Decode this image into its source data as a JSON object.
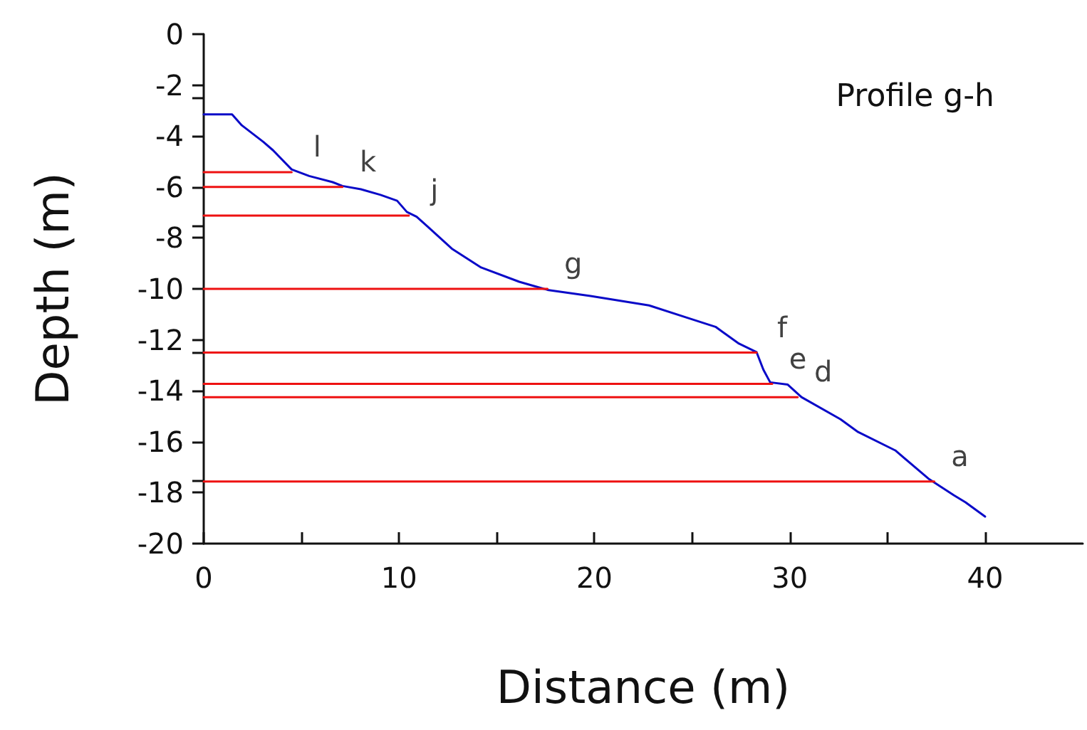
{
  "chart_data": {
    "type": "line",
    "title": "Profile g-h",
    "xlabel": "Distance (m)",
    "ylabel": "Depth (m)",
    "xlim": [
      0,
      45
    ],
    "xticks": [
      0,
      10,
      20,
      30,
      40
    ],
    "ylim": [
      -20,
      0
    ],
    "yticks": [
      -20,
      -18,
      -16,
      -14,
      -12,
      -10,
      -8,
      -6,
      -4,
      -2,
      0
    ],
    "grid": false,
    "marker": "none",
    "line_style": "solid",
    "series": [
      {
        "color": "#0a0ac8",
        "x": [
          0,
          1.45,
          1.95,
          3.05,
          3.55,
          4.5,
          5.4,
          6.6,
          7.1,
          8.05,
          9.05,
          9.9,
          10.4,
          10.9,
          11.5,
          12.7,
          14.2,
          16.15,
          17.6,
          19.8,
          22.8,
          24.7,
          26.2,
          27.4,
          28.3,
          28.65,
          29.0,
          29.9,
          30.6,
          32.6,
          33.5,
          35.4,
          37.1,
          38.4,
          39.0,
          40.0
        ],
        "values": [
          -3.15,
          -3.15,
          -3.58,
          -4.23,
          -4.56,
          -5.31,
          -5.57,
          -5.81,
          -5.96,
          -6.09,
          -6.31,
          -6.54,
          -6.98,
          -7.17,
          -7.58,
          -8.42,
          -9.16,
          -9.72,
          -10.04,
          -10.28,
          -10.65,
          -11.12,
          -11.49,
          -12.15,
          -12.48,
          -13.17,
          -13.67,
          -13.76,
          -14.25,
          -15.12,
          -15.62,
          -16.34,
          -17.45,
          -18.1,
          -18.38,
          -18.94
        ]
      },
      {
        "color": "#ee1111",
        "x": [
          0,
          4.5
        ],
        "values": [
          -5.42,
          -5.42
        ]
      },
      {
        "color": "#ee1111",
        "x": [
          0,
          7.1
        ],
        "values": [
          -6.0,
          -6.0
        ]
      },
      {
        "color": "#ee1111",
        "x": [
          0,
          10.5
        ],
        "values": [
          -7.12,
          -7.12
        ]
      },
      {
        "color": "#ee1111",
        "x": [
          0,
          17.6
        ],
        "values": [
          -10.0,
          -10.0
        ]
      },
      {
        "color": "#ee1111",
        "x": [
          0,
          28.3
        ],
        "values": [
          -12.5,
          -12.5
        ]
      },
      {
        "color": "#ee1111",
        "x": [
          0,
          29.1
        ],
        "values": [
          -13.73,
          -13.73
        ]
      },
      {
        "color": "#ee1111",
        "x": [
          0,
          30.4
        ],
        "values": [
          -14.25,
          -14.25
        ]
      },
      {
        "color": "#ee1111",
        "x": [
          0,
          37.4
        ],
        "values": [
          -17.56,
          -17.56
        ]
      }
    ],
    "annotations": [
      {
        "text": "l",
        "x": 4.5,
        "y": -5.42
      },
      {
        "text": "k",
        "x": 7.1,
        "y": -6.0
      },
      {
        "text": "j",
        "x": 10.5,
        "y": -7.12
      },
      {
        "text": "g",
        "x": 17.6,
        "y": -10.0
      },
      {
        "text": "f",
        "x": 28.3,
        "y": -12.5
      },
      {
        "text": "e",
        "x": 29.1,
        "y": -13.73
      },
      {
        "text": "d",
        "x": 30.4,
        "y": -14.25
      },
      {
        "text": "a",
        "x": 37.4,
        "y": -17.56
      }
    ]
  }
}
